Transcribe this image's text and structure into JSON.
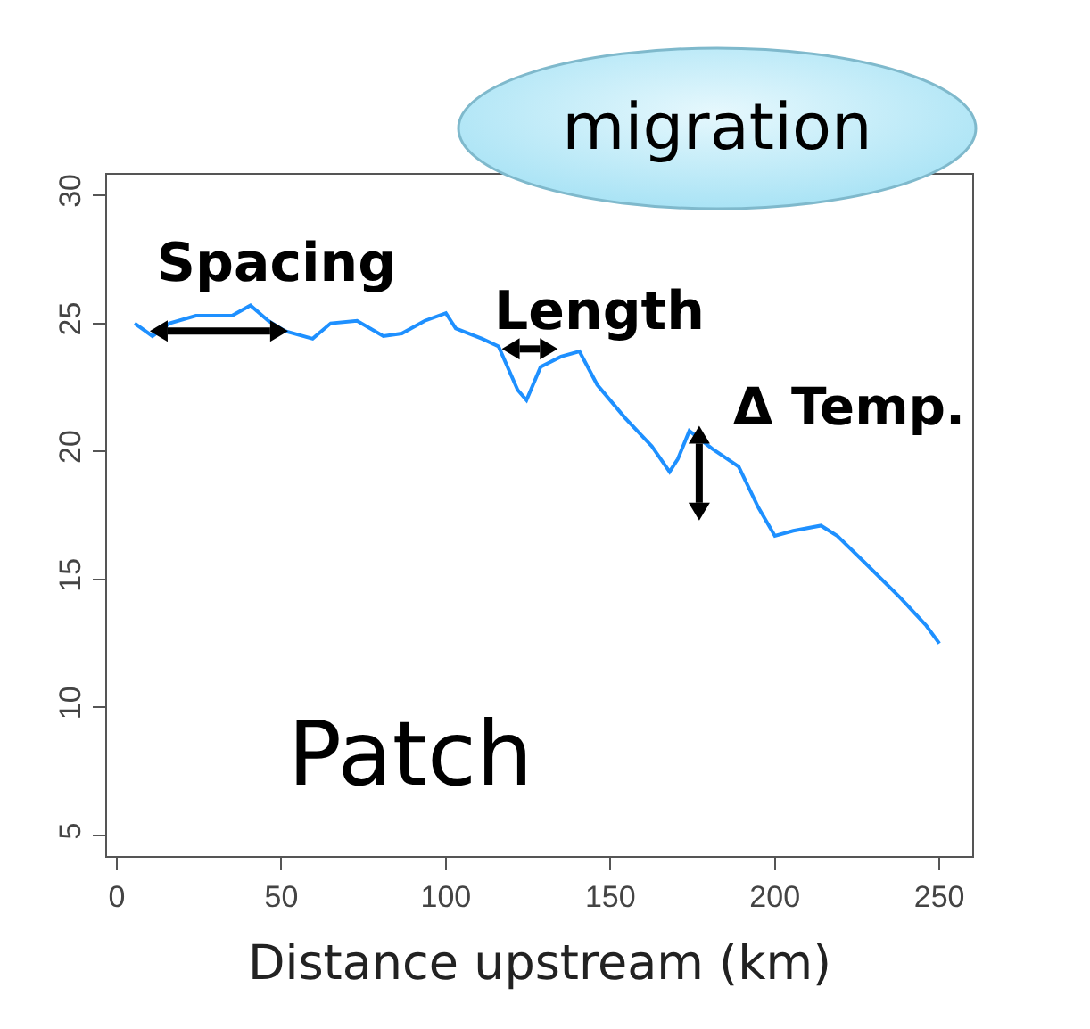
{
  "chart_data": {
    "type": "line",
    "xlabel": "Distance upstream (km)",
    "x": [
      5.4,
      10.8,
      16,
      24,
      35,
      40.6,
      46,
      51,
      59.5,
      65,
      73,
      81,
      86.6,
      93.6,
      100,
      103,
      111,
      116,
      121.8,
      124.5,
      128.8,
      135,
      140.6,
      146,
      154.5,
      162.6,
      168,
      170.5,
      174,
      181,
      189,
      195,
      200,
      205.6,
      214,
      219,
      227,
      238,
      246,
      250
    ],
    "series": [
      {
        "color": "#1e90ff",
        "values": [
          25,
          24.5,
          25,
          25.3,
          25.3,
          25.7,
          25.1,
          24.7,
          24.4,
          25,
          25.1,
          24.5,
          24.6,
          25.1,
          25.4,
          24.8,
          24.4,
          24.1,
          22.4,
          22,
          23.3,
          23.7,
          23.9,
          22.6,
          21.3,
          20.2,
          19.2,
          19.7,
          20.8,
          20.1,
          19.4,
          17.8,
          16.7,
          16.9,
          17.1,
          16.7,
          15.7,
          14.3,
          13.2,
          12.5
        ]
      }
    ],
    "xlim": [
      -3,
      260
    ],
    "xticks": [
      0,
      50,
      100,
      150,
      200,
      250
    ],
    "ylim": [
      4.2,
      30.8
    ],
    "yticks": [
      5,
      10,
      15,
      20,
      25,
      30
    ],
    "grid": false,
    "marker": "none",
    "line_style": "solid",
    "annotations": [
      "migration",
      "Spacing",
      "Length",
      "Δ Temp.",
      "Patch"
    ]
  }
}
